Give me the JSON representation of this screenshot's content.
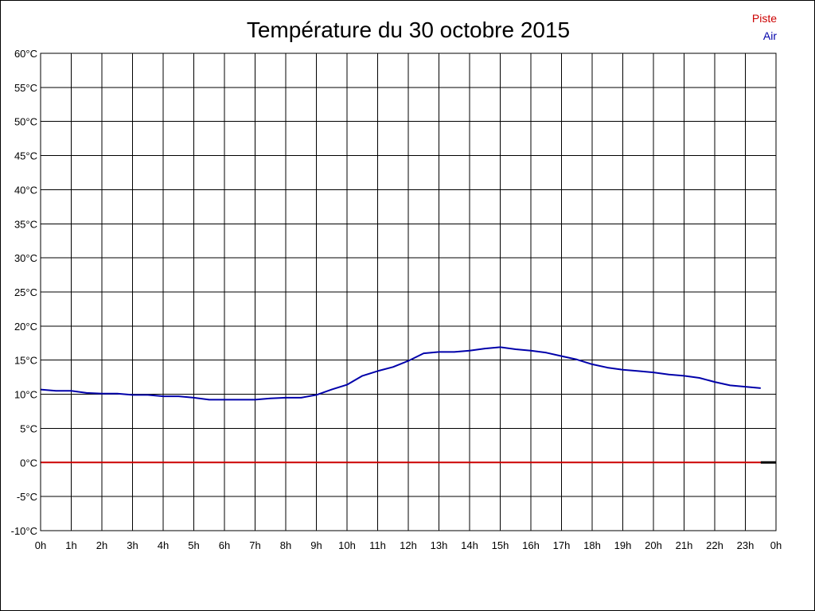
{
  "chart_data": {
    "type": "line",
    "title": "Température du 30 octobre 2015",
    "xlabel": "",
    "ylabel": "",
    "grid": true,
    "legend_placement": "top-right",
    "xlim": [
      0,
      24
    ],
    "ylim": [
      -10,
      60
    ],
    "x_ticks": [
      "0h",
      "1h",
      "2h",
      "3h",
      "4h",
      "5h",
      "6h",
      "7h",
      "8h",
      "9h",
      "10h",
      "11h",
      "12h",
      "13h",
      "14h",
      "15h",
      "16h",
      "17h",
      "18h",
      "19h",
      "20h",
      "21h",
      "22h",
      "23h",
      "0h"
    ],
    "y_ticks": [
      {
        "value": 60,
        "label": "60°C"
      },
      {
        "value": 55,
        "label": "55°C"
      },
      {
        "value": 50,
        "label": "50°C"
      },
      {
        "value": 45,
        "label": "45°C"
      },
      {
        "value": 40,
        "label": "40°C"
      },
      {
        "value": 35,
        "label": "35°C"
      },
      {
        "value": 30,
        "label": "30°C"
      },
      {
        "value": 25,
        "label": "25°C"
      },
      {
        "value": 20,
        "label": "20°C"
      },
      {
        "value": 15,
        "label": "15°C"
      },
      {
        "value": 10,
        "label": "10°C"
      },
      {
        "value": 5,
        "label": "5°C"
      },
      {
        "value": 0,
        "label": "0°C"
      },
      {
        "value": -5,
        "label": "-5°C"
      },
      {
        "value": -10,
        "label": "-10°C"
      }
    ],
    "series": [
      {
        "name": "Piste",
        "color": "#cc0000",
        "x": [
          0,
          23.5
        ],
        "y": [
          0,
          0
        ]
      },
      {
        "name": "Air",
        "color": "#0000aa",
        "x": [
          0,
          0.5,
          1,
          1.5,
          2,
          2.5,
          3,
          3.5,
          4,
          4.5,
          5,
          5.5,
          6,
          6.5,
          7,
          7.5,
          8,
          8.5,
          9,
          9.5,
          10,
          10.5,
          11,
          11.5,
          12,
          12.5,
          13,
          13.5,
          14,
          14.5,
          15,
          15.5,
          16,
          16.5,
          17,
          17.5,
          18,
          18.5,
          19,
          19.5,
          20,
          20.5,
          21,
          21.5,
          22,
          22.5,
          23,
          23.5
        ],
        "y": [
          10.7,
          10.5,
          10.5,
          10.2,
          10.1,
          10.1,
          9.9,
          9.9,
          9.7,
          9.7,
          9.5,
          9.2,
          9.2,
          9.2,
          9.2,
          9.4,
          9.5,
          9.5,
          9.9,
          10.7,
          11.4,
          12.7,
          13.4,
          14.0,
          14.9,
          16.0,
          16.2,
          16.2,
          16.4,
          16.7,
          16.9,
          16.6,
          16.4,
          16.1,
          15.6,
          15.1,
          14.4,
          13.9,
          13.6,
          13.4,
          13.2,
          12.9,
          12.7,
          12.4,
          11.8,
          11.3,
          11.1,
          10.9
        ]
      }
    ],
    "zero_line_extension_color": "#000000"
  }
}
